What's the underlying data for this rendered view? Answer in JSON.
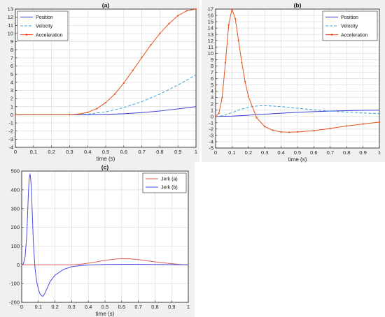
{
  "charts": [
    {
      "id": "a",
      "title": "(a)",
      "xlabel": "time (s)",
      "ylabel": "",
      "type": "line",
      "xlim": [
        0,
        1
      ],
      "ylim": [
        -4,
        13
      ],
      "xticks": [
        0,
        0.1,
        0.2,
        0.3,
        0.4,
        0.5,
        0.6,
        0.7,
        0.8,
        0.9,
        1
      ],
      "xtick_labels": [
        "0",
        "0.1",
        "0.2",
        "0.3",
        "0.4",
        "0.5",
        "0.6",
        "0.7",
        "0.8",
        "0.9",
        "1"
      ],
      "yticks": [
        -4,
        -3,
        -2,
        -1,
        0,
        1,
        2,
        3,
        4,
        5,
        6,
        7,
        8,
        9,
        10,
        11,
        12,
        13
      ],
      "ytick_labels": [
        "-4",
        "-3",
        "-2",
        "-1",
        "0",
        "1",
        "2",
        "3",
        "4",
        "5",
        "6",
        "7",
        "8",
        "9",
        "10",
        "11",
        "12",
        "13"
      ],
      "grid": true,
      "legend_position": "top-left",
      "series": [
        {
          "name": "Position",
          "color": "#3b3bd6",
          "style": "solid",
          "marker": "none",
          "x": [
            0,
            0.3,
            0.4,
            0.5,
            0.6,
            0.7,
            0.8,
            0.9,
            1.0
          ],
          "y": [
            0,
            0,
            0.01,
            0.05,
            0.13,
            0.27,
            0.47,
            0.72,
            1.0
          ]
        },
        {
          "name": "Velocity",
          "color": "#3aa3d8",
          "style": "dashed",
          "marker": "none",
          "x": [
            0,
            0.3,
            0.4,
            0.5,
            0.6,
            0.7,
            0.8,
            0.9,
            1.0
          ],
          "y": [
            0,
            0,
            0.08,
            0.36,
            0.88,
            1.62,
            2.55,
            3.66,
            4.9
          ]
        },
        {
          "name": "Acceleration",
          "color": "#e4541c",
          "style": "solid",
          "marker": "dot",
          "x": [
            0,
            0.3,
            0.35,
            0.4,
            0.45,
            0.5,
            0.55,
            0.6,
            0.65,
            0.7,
            0.75,
            0.8,
            0.85,
            0.9,
            0.95,
            1.0
          ],
          "y": [
            0,
            0,
            0.08,
            0.3,
            0.75,
            1.5,
            2.55,
            3.9,
            5.45,
            7.05,
            8.6,
            10.0,
            11.2,
            12.2,
            12.8,
            13.0
          ]
        }
      ]
    },
    {
      "id": "b",
      "title": "(b)",
      "xlabel": "time (s)",
      "ylabel": "",
      "type": "line",
      "xlim": [
        0,
        1
      ],
      "ylim": [
        -5,
        17
      ],
      "xticks": [
        0,
        0.1,
        0.2,
        0.3,
        0.4,
        0.5,
        0.6,
        0.7,
        0.8,
        0.9,
        1
      ],
      "xtick_labels": [
        "0",
        "0.1",
        "0.2",
        "0.3",
        "0.4",
        "0.5",
        "0.6",
        "0.7",
        "0.8",
        "0.9",
        "1"
      ],
      "yticks": [
        -5,
        -4,
        -3,
        -2,
        -1,
        0,
        1,
        2,
        3,
        4,
        5,
        6,
        7,
        8,
        9,
        10,
        11,
        12,
        13,
        14,
        15,
        16,
        17
      ],
      "ytick_labels": [
        "-5",
        "-4",
        "-3",
        "-2",
        "-1",
        "0",
        "1",
        "2",
        "3",
        "4",
        "5",
        "6",
        "7",
        "8",
        "9",
        "10",
        "11",
        "12",
        "13",
        "14",
        "15",
        "16",
        "17"
      ],
      "grid": true,
      "legend_position": "top-right",
      "series": [
        {
          "name": "Position",
          "color": "#3b3bd6",
          "style": "solid",
          "marker": "none",
          "x": [
            0,
            0.1,
            0.2,
            0.3,
            0.4,
            0.5,
            0.6,
            0.7,
            0.8,
            0.9,
            1.0
          ],
          "y": [
            0,
            0.06,
            0.2,
            0.36,
            0.52,
            0.65,
            0.76,
            0.85,
            0.92,
            0.97,
            1.0
          ]
        },
        {
          "name": "Velocity",
          "color": "#3aa3d8",
          "style": "dashed",
          "marker": "none",
          "x": [
            0,
            0.05,
            0.1,
            0.15,
            0.2,
            0.25,
            0.3,
            0.35,
            0.4,
            0.5,
            0.6,
            0.7,
            0.8,
            0.9,
            1.0
          ],
          "y": [
            0,
            0.15,
            0.6,
            1.1,
            1.45,
            1.65,
            1.7,
            1.65,
            1.55,
            1.3,
            1.05,
            0.85,
            0.7,
            0.55,
            0.45
          ]
        },
        {
          "name": "Acceleration",
          "color": "#e4541c",
          "style": "solid",
          "marker": "dot",
          "x": [
            0,
            0.02,
            0.04,
            0.06,
            0.08,
            0.1,
            0.12,
            0.14,
            0.16,
            0.18,
            0.2,
            0.25,
            0.3,
            0.35,
            0.4,
            0.45,
            0.5,
            0.6,
            0.7,
            0.8,
            0.9,
            1.0
          ],
          "y": [
            0,
            0.5,
            3.0,
            8.5,
            14.5,
            17.0,
            15.5,
            12.0,
            8.5,
            5.5,
            3.2,
            -0.2,
            -1.6,
            -2.2,
            -2.45,
            -2.5,
            -2.45,
            -2.25,
            -1.9,
            -1.5,
            -1.2,
            -0.9
          ]
        }
      ]
    },
    {
      "id": "c",
      "title": "(c)",
      "xlabel": "time (s)",
      "ylabel": "",
      "type": "line",
      "xlim": [
        0,
        1
      ],
      "ylim": [
        -200,
        500
      ],
      "xticks": [
        0,
        0.1,
        0.2,
        0.3,
        0.4,
        0.5,
        0.6,
        0.7,
        0.8,
        0.9,
        1
      ],
      "xtick_labels": [
        "0",
        "0.1",
        "0.2",
        "0.3",
        "0.4",
        "0.5",
        "0.6",
        "0.7",
        "0.8",
        "0.9",
        "1"
      ],
      "yticks": [
        -200,
        -100,
        0,
        100,
        200,
        300,
        400,
        500
      ],
      "ytick_labels": [
        "-200",
        "-100",
        "0",
        "100",
        "200",
        "300",
        "400",
        "500"
      ],
      "grid": true,
      "legend_position": "top-right",
      "series": [
        {
          "name": "Jerk (a)",
          "color": "#e05a5a",
          "style": "solid",
          "marker": "none",
          "x": [
            0,
            0.3,
            0.35,
            0.4,
            0.45,
            0.5,
            0.55,
            0.6,
            0.65,
            0.7,
            0.75,
            0.8,
            0.85,
            0.9,
            0.95,
            1.0
          ],
          "y": [
            0,
            0,
            3,
            9,
            16,
            24,
            30,
            33,
            32,
            28,
            22,
            16,
            11,
            6,
            2,
            0
          ]
        },
        {
          "name": "Jerk (b)",
          "color": "#4a4ae0",
          "style": "solid",
          "marker": "none",
          "x": [
            0,
            0.01,
            0.02,
            0.03,
            0.035,
            0.04,
            0.045,
            0.05,
            0.055,
            0.06,
            0.065,
            0.07,
            0.08,
            0.09,
            0.1,
            0.11,
            0.12,
            0.125,
            0.13,
            0.14,
            0.15,
            0.17,
            0.2,
            0.25,
            0.3,
            0.35,
            0.4,
            0.5,
            0.6,
            0.7,
            0.8,
            0.9,
            1.0
          ],
          "y": [
            0,
            5,
            40,
            150,
            260,
            380,
            460,
            485,
            450,
            360,
            240,
            120,
            -20,
            -90,
            -130,
            -155,
            -165,
            -168,
            -165,
            -150,
            -130,
            -90,
            -55,
            -25,
            -10,
            -4,
            -1,
            2,
            3,
            3,
            2,
            1,
            0
          ]
        }
      ]
    }
  ]
}
